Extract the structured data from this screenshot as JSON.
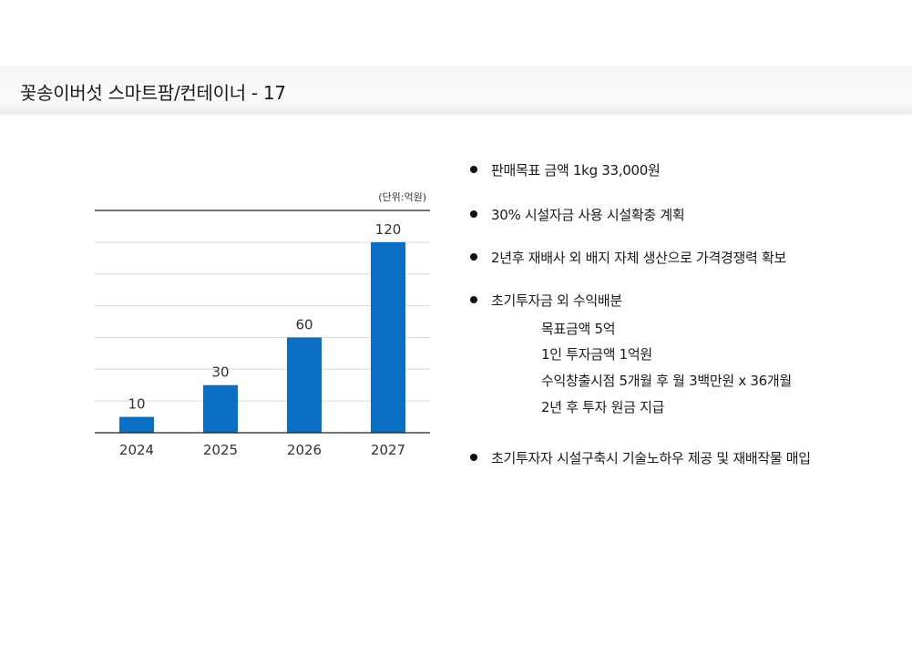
{
  "page": {
    "title": "꽃송이버섯 스마트팜/컨테이너 - 17"
  },
  "chart_data": {
    "type": "bar",
    "unit_label": "(단위:억원)",
    "categories": [
      "2024",
      "2025",
      "2026",
      "2027"
    ],
    "values": [
      10,
      30,
      60,
      120
    ],
    "ylim": [
      0,
      140
    ],
    "grid": true,
    "bar_color": "#0a6fc2"
  },
  "bullets": {
    "items": [
      {
        "text": "판매목표 금액 1kg 33,000원"
      },
      {
        "text": "30% 시설자금 사용 시설확충 계획"
      },
      {
        "text": "2년후 재배사 외 배지 자체 생산으로 가격경쟁력 확보"
      },
      {
        "text": "초기투자금 외 수익배분"
      },
      {
        "text": "초기투자자 시설구축시 기술노하우 제공 및 재배작물 매입"
      }
    ],
    "sub_items": [
      {
        "text": "목표금액 5억"
      },
      {
        "text": "1인 투자금액 1억원"
      },
      {
        "text": "수익창출시점 5개월 후 월 3백만원 x 36개월"
      },
      {
        "text": "2년 후 투자 원금 지급"
      }
    ]
  }
}
